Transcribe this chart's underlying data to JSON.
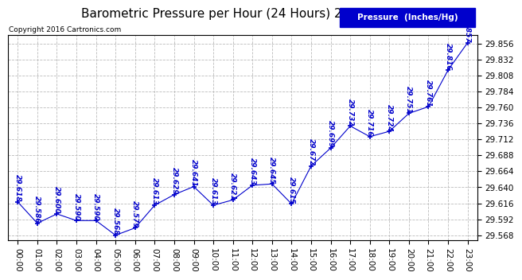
{
  "title": "Barometric Pressure per Hour (24 Hours) 20161217",
  "copyright": "Copyright 2016 Cartronics.com",
  "legend_label": "Pressure  (Inches/Hg)",
  "hours": [
    "00:00",
    "01:00",
    "02:00",
    "03:00",
    "04:00",
    "05:00",
    "06:00",
    "07:00",
    "08:00",
    "09:00",
    "10:00",
    "11:00",
    "12:00",
    "13:00",
    "14:00",
    "15:00",
    "16:00",
    "17:00",
    "18:00",
    "19:00",
    "20:00",
    "21:00",
    "22:00",
    "23:00"
  ],
  "values": [
    29.618,
    29.586,
    29.6,
    29.59,
    29.59,
    29.568,
    29.579,
    29.613,
    29.629,
    29.641,
    29.613,
    29.621,
    29.643,
    29.645,
    29.615,
    29.672,
    29.699,
    29.732,
    29.716,
    29.724,
    29.751,
    29.761,
    29.816,
    29.857
  ],
  "line_color": "#0000cc",
  "marker": "+",
  "marker_color": "#0000cc",
  "bg_color": "#ffffff",
  "grid_color": "#bbbbbb",
  "label_color": "#0000cc",
  "ytick_start": 29.568,
  "ytick_end": 29.857,
  "ytick_step": 0.024,
  "title_fontsize": 11,
  "label_fontsize": 6.5,
  "axis_fontsize": 7.5,
  "copyright_fontsize": 6.5,
  "legend_fontsize": 7.5
}
